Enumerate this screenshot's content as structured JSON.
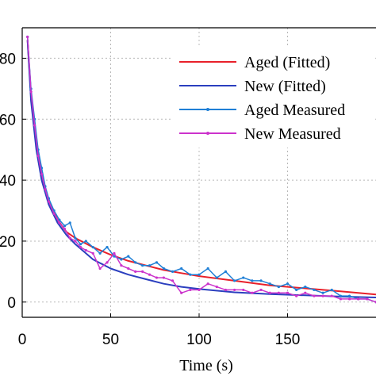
{
  "chart_data": {
    "type": "line",
    "title": "",
    "xlabel": "Time (s)",
    "ylabel": "",
    "xlim": [
      0,
      200
    ],
    "ylim": [
      -5,
      90
    ],
    "x_ticks": [
      0,
      50,
      100,
      150
    ],
    "x_tick_labels": [
      "0",
      "50",
      "100",
      "150"
    ],
    "y_ticks": [
      0,
      20,
      40,
      60,
      80
    ],
    "y_tick_labels": [
      "0",
      "20",
      "40",
      "60",
      "80"
    ],
    "grid": true,
    "legend_position": "top-right",
    "series": [
      {
        "name": "Aged (Fitted)",
        "color": "#e8202a",
        "style": "solid",
        "x": [
          3,
          5,
          8,
          11,
          15,
          20,
          25,
          30,
          40,
          50,
          60,
          70,
          80,
          90,
          100,
          120,
          140,
          160,
          180,
          200
        ],
        "y": [
          86,
          68,
          52,
          42,
          33,
          27,
          23,
          21,
          18,
          15.5,
          13.5,
          12,
          10.5,
          9.5,
          8.5,
          7,
          5.5,
          4.5,
          3.5,
          2.5
        ]
      },
      {
        "name": "New (Fitted)",
        "color": "#2b3fbf",
        "style": "solid",
        "x": [
          3,
          5,
          8,
          11,
          15,
          20,
          25,
          30,
          40,
          50,
          60,
          70,
          80,
          90,
          100,
          120,
          140,
          160,
          180,
          200
        ],
        "y": [
          86,
          66,
          50,
          40,
          32,
          26,
          22,
          19,
          14,
          11,
          9,
          7.5,
          6,
          5,
          4.3,
          3.2,
          2.6,
          2.2,
          1.8,
          1.5
        ]
      },
      {
        "name": "Aged Measured",
        "color": "#1f7fd6",
        "style": "marker",
        "x": [
          3,
          5,
          7,
          9,
          11,
          13,
          15,
          18,
          21,
          24,
          27,
          30,
          33,
          36,
          40,
          44,
          48,
          52,
          56,
          60,
          64,
          68,
          72,
          76,
          80,
          85,
          90,
          95,
          100,
          105,
          110,
          115,
          120,
          125,
          130,
          135,
          140,
          145,
          150,
          155,
          160,
          165,
          170,
          175,
          180,
          185,
          190,
          195,
          200
        ],
        "y": [
          87,
          70,
          60,
          50,
          44,
          38,
          34,
          30,
          27,
          25,
          26,
          21,
          19,
          20,
          18,
          16,
          18,
          15,
          14,
          15,
          13,
          12,
          12,
          13,
          11,
          10,
          11,
          9,
          9,
          11,
          8,
          10,
          7,
          8,
          7,
          7,
          6,
          5,
          6,
          4,
          5,
          4,
          3,
          4,
          2,
          2,
          1,
          1,
          0
        ]
      },
      {
        "name": "New Measured",
        "color": "#cc33cc",
        "style": "marker",
        "x": [
          3,
          5,
          7,
          9,
          11,
          13,
          15,
          18,
          21,
          24,
          27,
          30,
          33,
          36,
          40,
          44,
          48,
          52,
          56,
          60,
          64,
          68,
          72,
          76,
          80,
          85,
          90,
          95,
          100,
          105,
          110,
          115,
          120,
          125,
          130,
          135,
          140,
          145,
          150,
          155,
          160,
          165,
          170,
          175,
          180,
          185,
          190,
          195,
          200
        ],
        "y": [
          87,
          69,
          58,
          48,
          42,
          37,
          33,
          29,
          26,
          24,
          21,
          20,
          18,
          17,
          16,
          11,
          13,
          16,
          12,
          11,
          10,
          10,
          9,
          8,
          8,
          7,
          3,
          4,
          4,
          6,
          5,
          4,
          4,
          4,
          3,
          4,
          3,
          3,
          3,
          2,
          3,
          2,
          2,
          2,
          1,
          1,
          1,
          1,
          0
        ]
      }
    ]
  }
}
